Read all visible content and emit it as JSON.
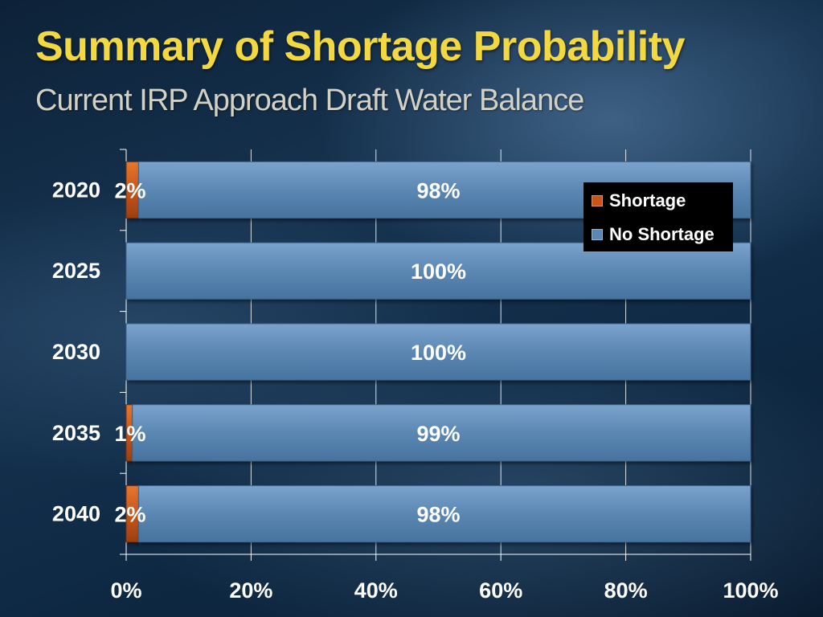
{
  "slide": {
    "title": "Summary of Shortage Probability",
    "subtitle": "Current  IRP Approach Draft Water Balance"
  },
  "colors": {
    "shortage": "#c8561a",
    "no_shortage": "#5b87b3",
    "title": "#f3d83f",
    "axis": "#ffffff"
  },
  "chart_data": {
    "type": "bar",
    "orientation": "horizontal",
    "stacked": true,
    "categories": [
      "2020",
      "2025",
      "2030",
      "2035",
      "2040"
    ],
    "series": [
      {
        "name": "Shortage",
        "values": [
          2,
          0,
          0,
          1,
          2
        ],
        "labels": [
          "2%",
          "",
          "",
          "1%",
          "2%"
        ]
      },
      {
        "name": "No Shortage",
        "values": [
          98,
          100,
          100,
          99,
          98
        ],
        "labels": [
          "98%",
          "100%",
          "100%",
          "99%",
          "98%"
        ]
      }
    ],
    "xlim": [
      0,
      100
    ],
    "xticks": [
      "0%",
      "20%",
      "40%",
      "60%",
      "80%",
      "100%"
    ],
    "grid": true,
    "legend_position": "top-right"
  }
}
